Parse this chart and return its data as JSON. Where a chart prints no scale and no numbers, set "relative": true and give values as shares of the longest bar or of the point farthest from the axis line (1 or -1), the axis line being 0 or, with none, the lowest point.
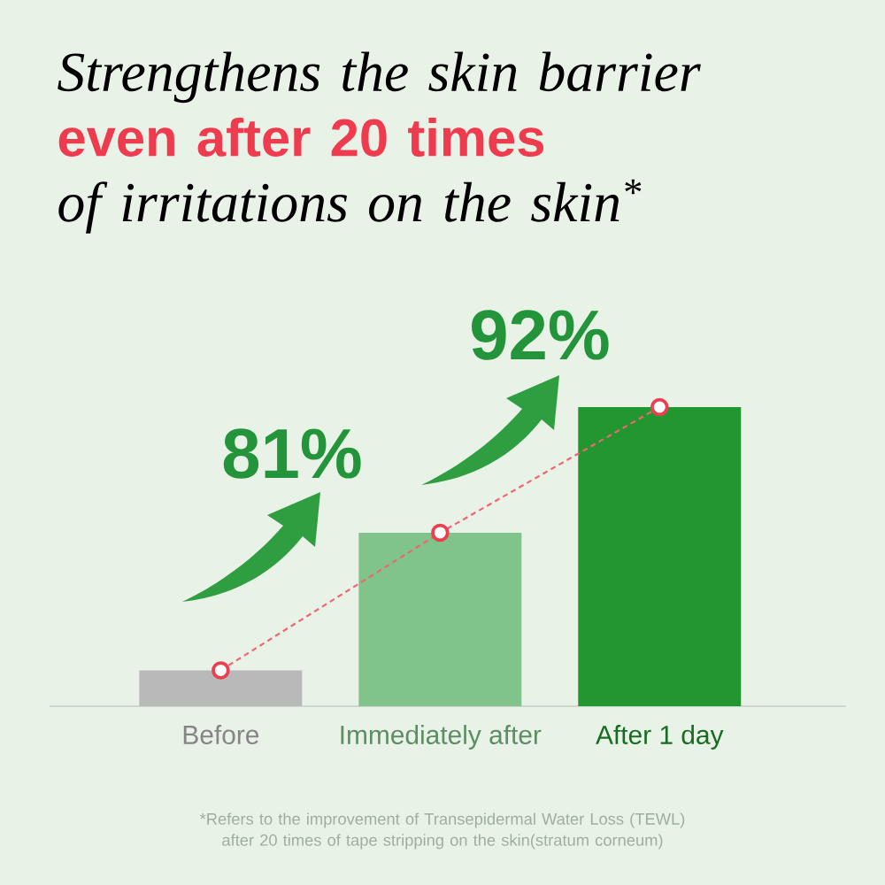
{
  "chart_data": {
    "type": "bar",
    "title": "Strengthens the skin barrier **even after 20 times** of irritations on the skin$^{*}$",
    "categories": [
      "Before",
      "Immediately after",
      "After 1 day"
    ],
    "relative": true,
    "series": [
      {
        "colors": [
          "#b9b9b9",
          "#80c38b",
          "#22962f"
        ],
        "values": [
          0.12,
          0.58,
          1
        ]
      },
      {
        "type": "line",
        "color": "#e8404f",
        "values": [
          0.12,
          0.58,
          1
        ],
        "line_style": "dashed",
        "marker": "circle"
      }
    ],
    "annotations": [
      "81%",
      "92%",
      "*Refers to the improvement of Transepidermal Water Loss (TEWL) after 20 times of tape stripping on the skin(stratum corneum)"
    ]
  }
}
